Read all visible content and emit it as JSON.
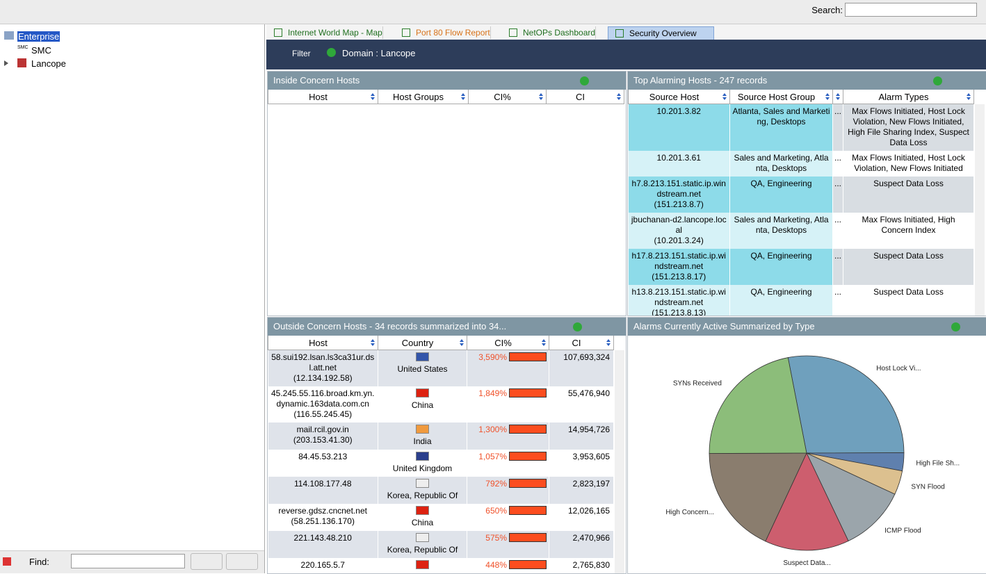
{
  "search": {
    "label": "Search:"
  },
  "tree": {
    "items": [
      "Enterprise",
      "SMC",
      "Lancope"
    ],
    "icon_text": "SMC"
  },
  "find": {
    "label": "Find:"
  },
  "tabs": [
    "Internet World Map - Map",
    "Port 80 Flow Report",
    "NetOPs Dashboard",
    "Security Overview"
  ],
  "toolbar": {
    "filter": "Filter",
    "domain": "Domain : Lancope"
  },
  "inside": {
    "title": "Inside Concern Hosts",
    "columns": [
      "Host",
      "Host Groups",
      "CI%",
      "CI"
    ]
  },
  "top_alarming": {
    "title": "Top Alarming Hosts - 247 records",
    "columns": [
      "Source Host",
      "Source Host Group",
      "Alarm Types"
    ],
    "rows": [
      {
        "host": "10.201.3.82",
        "group": "Atlanta, Sales and Marketing, Desktops",
        "more": "...",
        "alarms": "Max Flows Initiated, Host Lock Violation, New Flows Initiated, High File Sharing Index, Suspect Data Loss"
      },
      {
        "host": "10.201.3.61",
        "group": "Sales and Marketing, Atlanta, Desktops",
        "more": "...",
        "alarms": "Max Flows Initiated, Host Lock Violation, New Flows Initiated"
      },
      {
        "host": "h7.8.213.151.static.ip.windstream.net",
        "ip": "(151.213.8.7)",
        "group": "QA, Engineering",
        "more": "...",
        "alarms": "Suspect Data Loss"
      },
      {
        "host": "jbuchanan-d2.lancope.local",
        "ip": "(10.201.3.24)",
        "group": "Sales and Marketing, Atlanta, Desktops",
        "more": "...",
        "alarms": "Max Flows Initiated, High Concern Index"
      },
      {
        "host": "h17.8.213.151.static.ip.windstream.net",
        "ip": "(151.213.8.17)",
        "group": "QA, Engineering",
        "more": "...",
        "alarms": "Suspect Data Loss"
      },
      {
        "host": "h13.8.213.151.static.ip.windstream.net",
        "ip": "(151.213.8.13)",
        "group": "QA, Engineering",
        "more": "...",
        "alarms": "Suspect Data Loss"
      }
    ]
  },
  "outside": {
    "title": "Outside Concern Hosts - 34 records summarized into 34...",
    "columns": [
      "Host",
      "Country",
      "CI%",
      "CI"
    ],
    "rows": [
      {
        "host": "58.sui192.lsan.ls3ca31ur.dsl.att.net",
        "ip": "(12.134.192.58)",
        "country": "United States",
        "ci_pct": "3,590%",
        "ci": "107,693,324"
      },
      {
        "host": "45.245.55.116.broad.km.yn.dynamic.163data.com.cn",
        "ip": "(116.55.245.45)",
        "country": "China",
        "ci_pct": "1,849%",
        "ci": "55,476,940"
      },
      {
        "host": "mail.rcil.gov.in",
        "ip": "(203.153.41.30)",
        "country": "India",
        "ci_pct": "1,300%",
        "ci": "14,954,726"
      },
      {
        "host": "84.45.53.213",
        "country": "United Kingdom",
        "ci_pct": "1,057%",
        "ci": "3,953,605"
      },
      {
        "host": "114.108.177.48",
        "country": "Korea, Republic Of",
        "ci_pct": "792%",
        "ci": "2,823,197"
      },
      {
        "host": "reverse.gdsz.cncnet.net",
        "ip": "(58.251.136.170)",
        "country": "China",
        "ci_pct": "650%",
        "ci": "12,026,165"
      },
      {
        "host": "221.143.48.210",
        "country": "Korea, Republic Of",
        "ci_pct": "575%",
        "ci": "2,470,966"
      },
      {
        "host": "220.165.5.7",
        "ci_pct": "448%",
        "ci": "2,765,830"
      }
    ]
  },
  "alarms": {
    "title": "Alarms Currently Active Summarized by Type",
    "chart_data": {
      "type": "pie",
      "labels": [
        "Host Lock Vi...",
        "High File Sh...",
        "SYN Flood",
        "ICMP Flood",
        "Suspect Data...",
        "High Concern...",
        "SYNs Received"
      ],
      "values": [
        28,
        3,
        4,
        11,
        14,
        18,
        22
      ],
      "colors": [
        "#6fa0bd",
        "#5f80ae",
        "#dcc08f",
        "#9ba5ab",
        "#cd5e6e",
        "#8a7d6e",
        "#8cbd7a"
      ]
    }
  }
}
